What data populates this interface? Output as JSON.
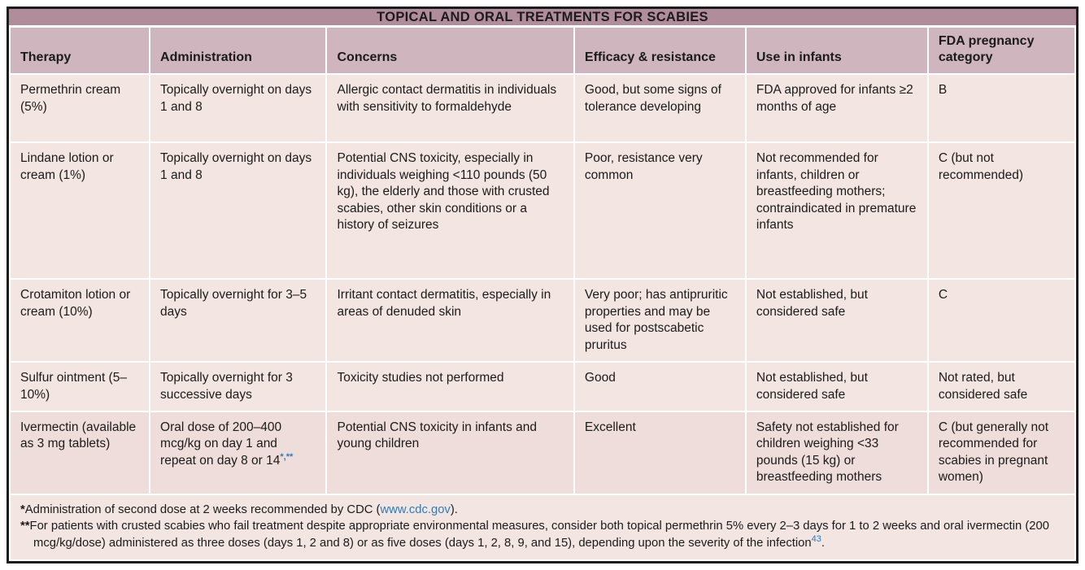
{
  "table": {
    "title": "TOPICAL AND ORAL TREATMENTS FOR SCABIES",
    "columns": [
      "Therapy",
      "Administration",
      "Concerns",
      "Efficacy & resistance",
      "Use in infants",
      "FDA pregnancy category"
    ],
    "rows": [
      [
        "Permethrin cream (5%)",
        "Topically overnight on days 1 and 8",
        "Allergic contact dermatitis in individuals with sensitivity to formaldehyde",
        "Good, but some signs of tolerance developing",
        "FDA approved for infants ≥2 months of age",
        "B"
      ],
      [
        "Lindane lotion or cream (1%)",
        "Topically overnight on days 1 and 8",
        "Potential CNS toxicity, especially in individuals weighing <110 pounds (50 kg), the elderly and those with crusted scabies, other skin conditions or a history of seizures",
        "Poor, resistance very common",
        "Not recommended for infants, children or breastfeeding mothers; contraindicated in premature infants",
        "C (but not recommended)"
      ],
      [
        "Crotamiton lotion or cream (10%)",
        "Topically overnight for 3–5 days",
        "Irritant contact dermatitis, especially in areas of denuded skin",
        "Very poor; has antipruritic properties and may be used for postscabetic pruritus",
        "Not established, but considered safe",
        "C"
      ],
      [
        "Sulfur ointment (5–10%)",
        "Topically overnight for 3 successive days",
        "Toxicity studies not performed",
        "Good",
        "Not established, but considered safe",
        "Not rated, but considered safe"
      ],
      [
        "Ivermectin (available as 3 mg tablets)",
        {
          "text": "Oral dose of 200–400 mcg/kg on day 1 and repeat on day 8 or 14",
          "sup": "*,**"
        },
        "Potential CNS toxicity in infants and young children",
        "Excellent",
        "Safety not established for children weighing <33 pounds (15 kg) or breastfeeding mothers",
        "C (but generally not recommended for scabies in pregnant women)"
      ]
    ]
  },
  "footnotes": [
    {
      "marker": "*",
      "text": "Administration of second dose at 2 weeks recommended by CDC (",
      "link": "www.cdc.gov",
      "text_after": ")."
    },
    {
      "marker": "**",
      "text": "For patients with crusted scabies who fail treatment despite appropriate environmental measures, consider both topical permethrin 5% every 2–3 days for 1 to 2 weeks and oral ivermectin (200 mcg/kg/dose) administered as three doses (days 1, 2 and 8) or as five doses (days 1, 2, 8, 9, and 15), depending upon the severity of the infection",
      "sup": "43",
      "text_after": "."
    }
  ],
  "colors": {
    "title_bar": "#b18d9c",
    "header_row": "#cfb5bd",
    "row_bg": "#f2e5e2",
    "row_bg_alt": "#eeddda",
    "footer_bg": "#f2e5e2",
    "link": "#2e7cb8",
    "border": "#1c1c1c"
  }
}
